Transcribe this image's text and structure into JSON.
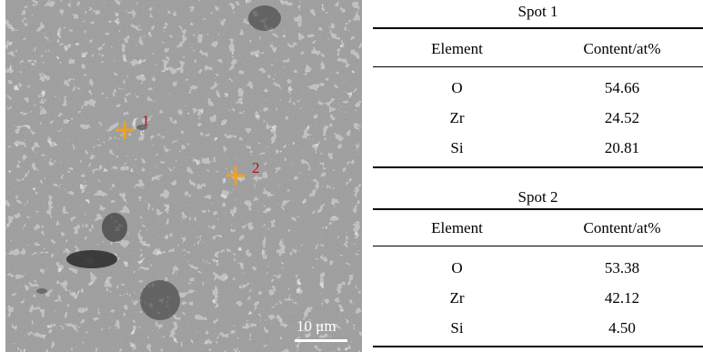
{
  "figure": {
    "micrograph": {
      "background_color": "#9a9a9a",
      "marker_color": "#f0a020",
      "label_color": "#b0171d",
      "spots": [
        {
          "label": "1"
        },
        {
          "label": "2"
        }
      ],
      "scale_bar_label": "10 μm"
    },
    "tables": [
      {
        "title": "Spot 1",
        "headers": [
          "Element",
          "Content/at%"
        ],
        "rows": [
          {
            "element": "O",
            "content": "54.66"
          },
          {
            "element": "Zr",
            "content": "24.52"
          },
          {
            "element": "Si",
            "content": "20.81"
          }
        ]
      },
      {
        "title": "Spot 2",
        "headers": [
          "Element",
          "Content/at%"
        ],
        "rows": [
          {
            "element": "O",
            "content": "53.38"
          },
          {
            "element": "Zr",
            "content": "42.12"
          },
          {
            "element": "Si",
            "content": "4.50"
          }
        ]
      }
    ]
  }
}
